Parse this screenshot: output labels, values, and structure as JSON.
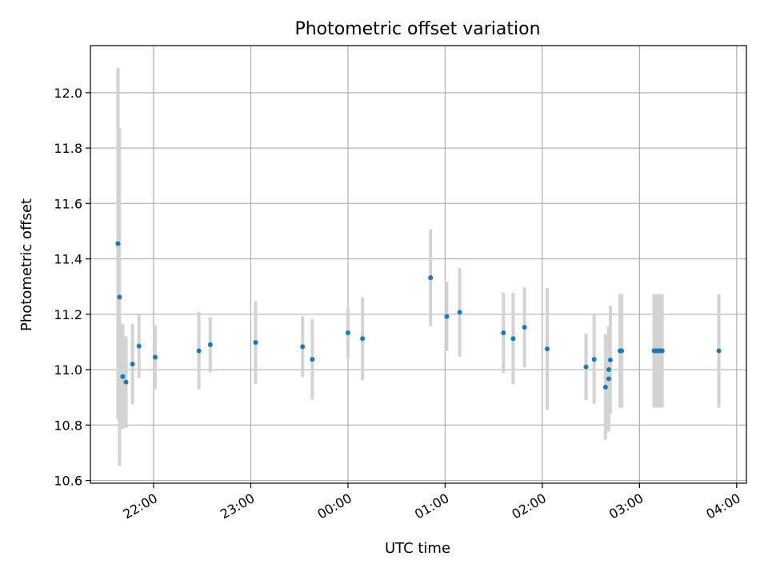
{
  "chart_data": {
    "type": "scatter",
    "title": "Photometric offset variation",
    "xlabel": "UTC time",
    "ylabel": "Photometric offset",
    "x_unit": "hours",
    "xlim": [
      21.35,
      28.1
    ],
    "ylim": [
      10.59,
      12.17
    ],
    "x_ticks": [
      {
        "value": 22,
        "label": "22:00"
      },
      {
        "value": 23,
        "label": "23:00"
      },
      {
        "value": 24,
        "label": "00:00"
      },
      {
        "value": 25,
        "label": "01:00"
      },
      {
        "value": 26,
        "label": "02:00"
      },
      {
        "value": 27,
        "label": "03:00"
      },
      {
        "value": 28,
        "label": "04:00"
      }
    ],
    "y_ticks": [
      {
        "value": 10.6,
        "label": "10.6"
      },
      {
        "value": 10.8,
        "label": "10.8"
      },
      {
        "value": 11.0,
        "label": "11.0"
      },
      {
        "value": 11.2,
        "label": "11.2"
      },
      {
        "value": 11.4,
        "label": "11.4"
      },
      {
        "value": 11.6,
        "label": "11.6"
      },
      {
        "value": 11.8,
        "label": "11.8"
      },
      {
        "value": 12.0,
        "label": "12.0"
      }
    ],
    "grid": true,
    "colors": {
      "marker": "#1f77b4",
      "errorbar": "#d3d3d3"
    },
    "points": [
      {
        "x": "21:38",
        "y": 11.455,
        "err": 0.635
      },
      {
        "x": "21:39",
        "y": 11.262,
        "err": 0.61
      },
      {
        "x": "21:41",
        "y": 10.975,
        "err": 0.19
      },
      {
        "x": "21:43",
        "y": 10.955,
        "err": 0.165
      },
      {
        "x": "21:47",
        "y": 11.02,
        "err": 0.145
      },
      {
        "x": "21:51",
        "y": 11.085,
        "err": 0.115
      },
      {
        "x": "22:01",
        "y": 11.045,
        "err": 0.115
      },
      {
        "x": "22:28",
        "y": 11.068,
        "err": 0.14
      },
      {
        "x": "22:35",
        "y": 11.09,
        "err": 0.1
      },
      {
        "x": "23:03",
        "y": 11.098,
        "err": 0.15
      },
      {
        "x": "23:32",
        "y": 11.083,
        "err": 0.11
      },
      {
        "x": "23:38",
        "y": 11.037,
        "err": 0.145
      },
      {
        "x": "00:00",
        "y": 11.133,
        "err": 0.09
      },
      {
        "x": "00:09",
        "y": 11.112,
        "err": 0.15
      },
      {
        "x": "00:51",
        "y": 11.332,
        "err": 0.175
      },
      {
        "x": "01:01",
        "y": 11.192,
        "err": 0.125
      },
      {
        "x": "01:09",
        "y": 11.207,
        "err": 0.16
      },
      {
        "x": "01:36",
        "y": 11.133,
        "err": 0.145
      },
      {
        "x": "01:42",
        "y": 11.112,
        "err": 0.165
      },
      {
        "x": "01:49",
        "y": 11.153,
        "err": 0.145
      },
      {
        "x": "02:03",
        "y": 11.075,
        "err": 0.22
      },
      {
        "x": "02:27",
        "y": 11.01,
        "err": 0.12
      },
      {
        "x": "02:32",
        "y": 11.037,
        "err": 0.16
      },
      {
        "x": "02:39",
        "y": 10.937,
        "err": 0.19
      },
      {
        "x": "02:41",
        "y": 10.967,
        "err": 0.19
      },
      {
        "x": "02:41",
        "y": 11.0,
        "err": 0.15
      },
      {
        "x": "02:42",
        "y": 11.035,
        "err": 0.195
      },
      {
        "x": "02:48",
        "y": 11.068,
        "err": 0.205
      },
      {
        "x": "02:49",
        "y": 11.068,
        "err": 0.205
      },
      {
        "x": "03:09",
        "y": 11.068,
        "err": 0.205
      },
      {
        "x": "03:10",
        "y": 11.068,
        "err": 0.205
      },
      {
        "x": "03:11",
        "y": 11.068,
        "err": 0.205
      },
      {
        "x": "03:12",
        "y": 11.068,
        "err": 0.205
      },
      {
        "x": "03:13",
        "y": 11.068,
        "err": 0.205
      },
      {
        "x": "03:14",
        "y": 11.068,
        "err": 0.205
      },
      {
        "x": "03:49",
        "y": 11.068,
        "err": 0.205
      }
    ]
  }
}
